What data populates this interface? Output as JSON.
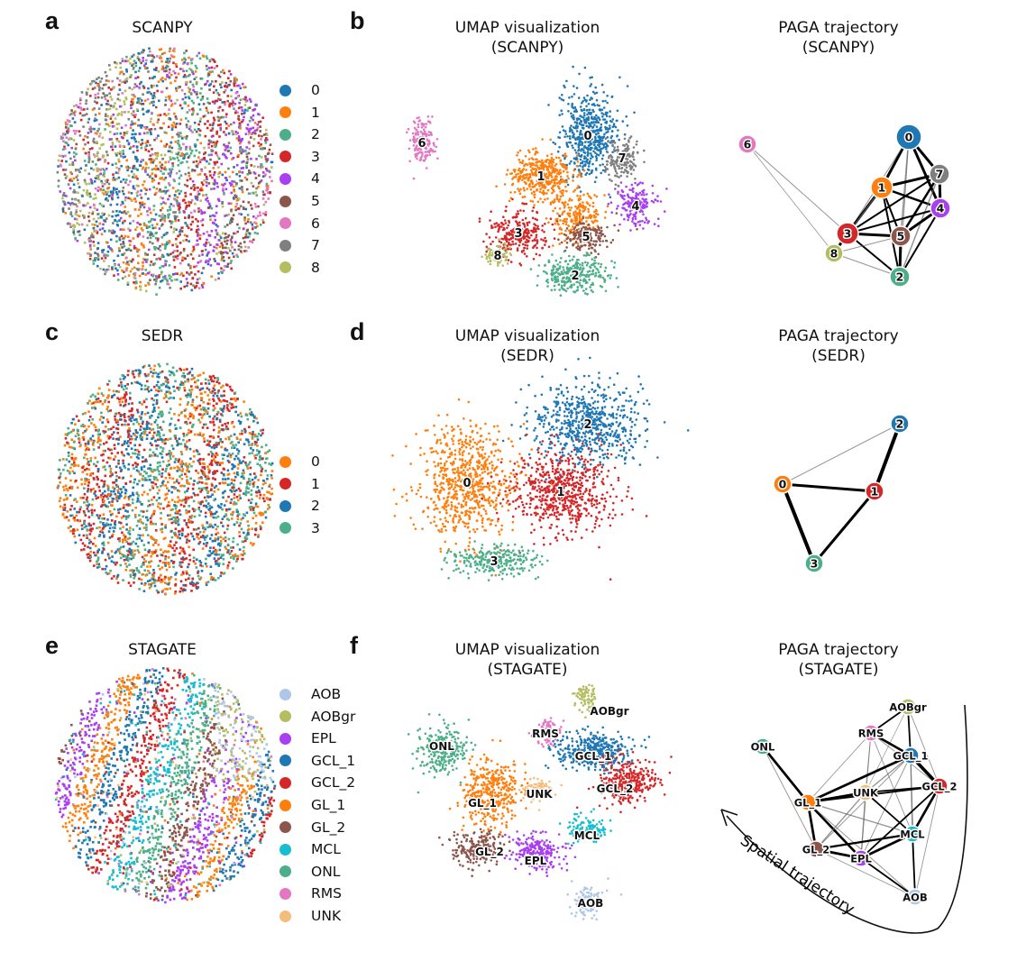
{
  "palette": {
    "0": "#1f77b4",
    "1": "#ff7f0e",
    "2": "#4daf8a",
    "3": "#d62728",
    "4": "#a93ff0",
    "5": "#8c564b",
    "6": "#e377c2",
    "7": "#7f7f7f",
    "8": "#b5bd61",
    "sedr_0": "#ff7f0e",
    "sedr_1": "#d62728",
    "sedr_2": "#1f77b4",
    "sedr_3": "#4daf8a",
    "AOB": "#aec7e8",
    "AOBgr": "#b5bd61",
    "EPL": "#a93ff0",
    "GCL_1": "#1f77b4",
    "GCL_2": "#d62728",
    "GL_1": "#ff7f0e",
    "GL_2": "#8c564b",
    "MCL": "#17becf",
    "ONL": "#4daf8a",
    "RMS": "#e377c2",
    "UNK": "#f5bd7c"
  },
  "rows": [
    {
      "id": "scanpy",
      "letter_left": "a",
      "letter_right": "b",
      "spatial_title": "SCANPY",
      "umap_title": [
        "UMAP visualization",
        "(SCANPY)"
      ],
      "paga_title": [
        "PAGA trajectory",
        "(SCANPY)"
      ],
      "legend": [
        "0",
        "1",
        "2",
        "3",
        "4",
        "5",
        "6",
        "7",
        "8"
      ],
      "legend_colors": [
        "#1f77b4",
        "#ff7f0e",
        "#4daf8a",
        "#d62728",
        "#a93ff0",
        "#8c564b",
        "#e377c2",
        "#7f7f7f",
        "#b5bd61"
      ],
      "paga_nodes": [
        {
          "label": "0",
          "color": "#1f77b4"
        },
        {
          "label": "1",
          "color": "#ff7f0e"
        },
        {
          "label": "2",
          "color": "#4daf8a"
        },
        {
          "label": "3",
          "color": "#d62728"
        },
        {
          "label": "4",
          "color": "#a93ff0"
        },
        {
          "label": "5",
          "color": "#8c564b"
        },
        {
          "label": "6",
          "color": "#e377c2"
        },
        {
          "label": "7",
          "color": "#7f7f7f"
        },
        {
          "label": "8",
          "color": "#b5bd61"
        }
      ],
      "paga_edges": [
        [
          "0",
          "1",
          3
        ],
        [
          "0",
          "7",
          3
        ],
        [
          "0",
          "4",
          3
        ],
        [
          "0",
          "3",
          1
        ],
        [
          "0",
          "5",
          1.5
        ],
        [
          "0",
          "2",
          1
        ],
        [
          "1",
          "7",
          3
        ],
        [
          "1",
          "4",
          2.5
        ],
        [
          "1",
          "3",
          3
        ],
        [
          "1",
          "5",
          2
        ],
        [
          "1",
          "2",
          2
        ],
        [
          "1",
          "8",
          1.5
        ],
        [
          "7",
          "4",
          3
        ],
        [
          "7",
          "3",
          2
        ],
        [
          "7",
          "5",
          2.5
        ],
        [
          "7",
          "2",
          1.5
        ],
        [
          "4",
          "5",
          3
        ],
        [
          "4",
          "3",
          2
        ],
        [
          "4",
          "2",
          2
        ],
        [
          "3",
          "5",
          3
        ],
        [
          "3",
          "8",
          3
        ],
        [
          "3",
          "2",
          2
        ],
        [
          "5",
          "2",
          3
        ],
        [
          "5",
          "8",
          1
        ],
        [
          "8",
          "2",
          1
        ],
        [
          "6",
          "3",
          1
        ],
        [
          "6",
          "8",
          0.8
        ]
      ]
    },
    {
      "id": "sedr",
      "letter_left": "c",
      "letter_right": "d",
      "spatial_title": "SEDR",
      "umap_title": [
        "UMAP visualization",
        "(SEDR)"
      ],
      "paga_title": [
        "PAGA trajectory",
        "(SEDR)"
      ],
      "legend": [
        "0",
        "1",
        "2",
        "3"
      ],
      "legend_colors": [
        "#ff7f0e",
        "#d62728",
        "#1f77b4",
        "#4daf8a"
      ],
      "paga_nodes": [
        {
          "label": "0",
          "color": "#ff7f0e"
        },
        {
          "label": "1",
          "color": "#d62728"
        },
        {
          "label": "2",
          "color": "#1f77b4"
        },
        {
          "label": "3",
          "color": "#4daf8a"
        }
      ],
      "paga_edges": [
        [
          "0",
          "1",
          3
        ],
        [
          "0",
          "2",
          1
        ],
        [
          "0",
          "3",
          4
        ],
        [
          "1",
          "2",
          4
        ],
        [
          "1",
          "3",
          3
        ]
      ]
    },
    {
      "id": "stagate",
      "letter_left": "e",
      "letter_right": "f",
      "spatial_title": "STAGATE",
      "umap_title": [
        "UMAP visualization",
        "(STAGATE)"
      ],
      "paga_title": [
        "PAGA trajectory",
        "(STAGATE)"
      ],
      "legend": [
        "AOB",
        "AOBgr",
        "EPL",
        "GCL_1",
        "GCL_2",
        "GL_1",
        "GL_2",
        "MCL",
        "ONL",
        "RMS",
        "UNK"
      ],
      "legend_colors": [
        "#aec7e8",
        "#b5bd61",
        "#a93ff0",
        "#1f77b4",
        "#d62728",
        "#ff7f0e",
        "#8c564b",
        "#17becf",
        "#4daf8a",
        "#e377c2",
        "#f5bd7c"
      ],
      "paga_nodes": [
        {
          "label": "AOBgr",
          "color": "#b5bd61"
        },
        {
          "label": "RMS",
          "color": "#e377c2"
        },
        {
          "label": "GCL_1",
          "color": "#1f77b4"
        },
        {
          "label": "ONL",
          "color": "#4daf8a"
        },
        {
          "label": "GCL_2",
          "color": "#d62728"
        },
        {
          "label": "UNK",
          "color": "#f5bd7c"
        },
        {
          "label": "GL_1",
          "color": "#ff7f0e"
        },
        {
          "label": "MCL",
          "color": "#17becf"
        },
        {
          "label": "GL_2",
          "color": "#8c564b"
        },
        {
          "label": "EPL",
          "color": "#a93ff0"
        },
        {
          "label": "AOB",
          "color": "#aec7e8"
        }
      ],
      "paga_edges": [
        [
          "AOBgr",
          "RMS",
          2
        ],
        [
          "AOBgr",
          "GCL_1",
          2
        ],
        [
          "AOBgr",
          "GCL_2",
          1
        ],
        [
          "AOBgr",
          "UNK",
          0.8
        ],
        [
          "RMS",
          "GCL_1",
          3
        ],
        [
          "RMS",
          "GCL_2",
          1
        ],
        [
          "RMS",
          "UNK",
          1
        ],
        [
          "RMS",
          "GL_1",
          1
        ],
        [
          "RMS",
          "MCL",
          1
        ],
        [
          "RMS",
          "EPL",
          0.8
        ],
        [
          "GCL_1",
          "GCL_2",
          4
        ],
        [
          "GCL_1",
          "UNK",
          1.5
        ],
        [
          "GCL_1",
          "GL_1",
          3
        ],
        [
          "GCL_1",
          "MCL",
          1.5
        ],
        [
          "GCL_1",
          "EPL",
          1
        ],
        [
          "GCL_1",
          "GL_2",
          1
        ],
        [
          "GCL_1",
          "AOB",
          1
        ],
        [
          "GCL_2",
          "UNK",
          2
        ],
        [
          "GCL_2",
          "GL_1",
          2
        ],
        [
          "GCL_2",
          "MCL",
          3
        ],
        [
          "GCL_2",
          "EPL",
          2
        ],
        [
          "GCL_2",
          "AOB",
          1
        ],
        [
          "ONL",
          "GL_1",
          3
        ],
        [
          "ONL",
          "GL_2",
          1
        ],
        [
          "GL_1",
          "UNK",
          3
        ],
        [
          "GL_1",
          "GL_2",
          3
        ],
        [
          "GL_1",
          "MCL",
          1.5
        ],
        [
          "GL_1",
          "EPL",
          3
        ],
        [
          "GL_1",
          "AOB",
          1
        ],
        [
          "UNK",
          "MCL",
          2
        ],
        [
          "UNK",
          "EPL",
          1.5
        ],
        [
          "UNK",
          "GL_2",
          1.5
        ],
        [
          "MCL",
          "EPL",
          3
        ],
        [
          "MCL",
          "GL_2",
          2.5
        ],
        [
          "MCL",
          "AOB",
          2
        ],
        [
          "GL_2",
          "EPL",
          3
        ],
        [
          "GL_2",
          "AOB",
          1
        ],
        [
          "EPL",
          "AOB",
          2
        ]
      ],
      "annotation": "Spatial trajectory"
    }
  ],
  "umap_labels": {
    "scanpy": [
      "0",
      "1",
      "2",
      "3",
      "4",
      "5",
      "6",
      "7",
      "8"
    ],
    "sedr": [
      "0",
      "1",
      "2",
      "3"
    ],
    "stagate": [
      "AOBgr",
      "RMS",
      "GCL_1",
      "ONL",
      "GCL_2",
      "UNK",
      "GL_1",
      "MCL",
      "GL_2",
      "EPL",
      "AOB"
    ]
  }
}
